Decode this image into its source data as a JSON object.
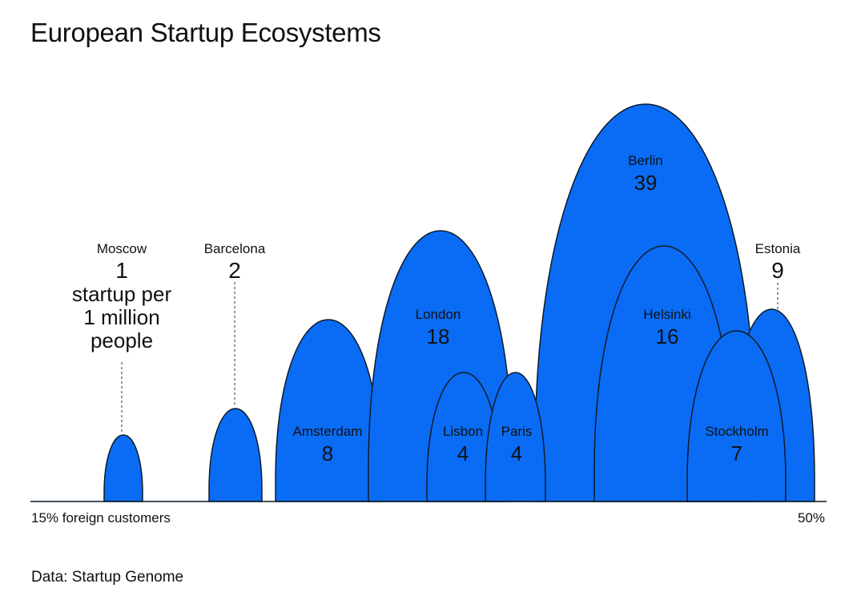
{
  "chart_data": {
    "type": "area",
    "title": "European Startup Ecosystems",
    "x_axis": {
      "min_label": "15% foreign customers",
      "max_label": "50%"
    },
    "value_note": "startup per 1 million people",
    "series": [
      {
        "name": "Moscow",
        "value": 1,
        "display": "1",
        "extra_lines": [
          "startup per",
          "1 million",
          "people"
        ],
        "label_style": "callout-left"
      },
      {
        "name": "Barcelona",
        "value": 2,
        "display": "2",
        "label_style": "callout"
      },
      {
        "name": "Amsterdam",
        "value": 8,
        "display": "8",
        "label_style": "inside"
      },
      {
        "name": "London",
        "value": 18,
        "display": "18",
        "label_style": "inside"
      },
      {
        "name": "Lisbon",
        "value": 4,
        "display": "4",
        "label_style": "inside"
      },
      {
        "name": "Paris",
        "value": 4,
        "display": "4",
        "label_style": "inside"
      },
      {
        "name": "Berlin",
        "value": 39,
        "display": "39",
        "label_style": "inside"
      },
      {
        "name": "Helsinki",
        "value": 16,
        "display": "16",
        "label_style": "inside"
      },
      {
        "name": "Estonia",
        "value": 9,
        "display": "9",
        "label_style": "callout"
      },
      {
        "name": "Stockholm",
        "value": 7,
        "display": "7",
        "label_style": "inside"
      }
    ],
    "source": "Data: Startup Genome"
  },
  "colors": {
    "fill": "#0a6cf5",
    "stroke": "#0d1b2a",
    "text": "#111111",
    "leader": "#555555"
  }
}
